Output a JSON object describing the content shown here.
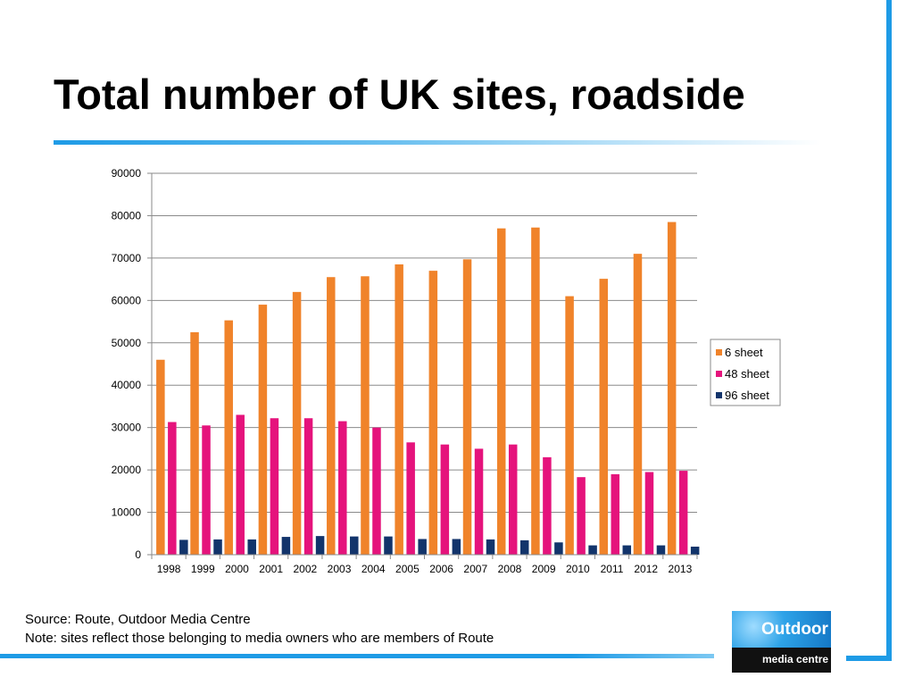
{
  "slide": {
    "title": "Total number of UK sites, roadside",
    "source_line": "Source: Route, Outdoor Media Centre",
    "note_line": "Note: sites reflect those belonging to media owners who are members of Route"
  },
  "logo": {
    "main": "Outdoor",
    "sub": "media centre"
  },
  "colors": {
    "accent": "#1e9be6",
    "series_6_sheet": "#f0832a",
    "series_48_sheet": "#e5137c",
    "series_96_sheet": "#12346b"
  },
  "chart_data": {
    "type": "bar",
    "title": "",
    "xlabel": "",
    "ylabel": "",
    "categories": [
      "1998",
      "1999",
      "2000",
      "2001",
      "2002",
      "2003",
      "2004",
      "2005",
      "2006",
      "2007",
      "2008",
      "2009",
      "2010",
      "2011",
      "2012",
      "2013"
    ],
    "series": [
      {
        "name": "6 sheet",
        "color": "#f0832a",
        "values": [
          46000,
          52500,
          55300,
          59000,
          62000,
          65500,
          65700,
          68500,
          67000,
          69700,
          77000,
          77200,
          61000,
          65100,
          71000,
          78500
        ]
      },
      {
        "name": "48 sheet",
        "color": "#e5137c",
        "values": [
          31300,
          30500,
          33000,
          32200,
          32200,
          31500,
          30000,
          26500,
          26000,
          25000,
          26000,
          23000,
          18300,
          19000,
          19500,
          19800
        ]
      },
      {
        "name": "96 sheet",
        "color": "#12346b",
        "values": [
          3500,
          3600,
          3600,
          4200,
          4400,
          4300,
          4300,
          3700,
          3700,
          3600,
          3400,
          2900,
          2200,
          2200,
          2200,
          1900
        ]
      }
    ],
    "ylim": [
      0,
      90000
    ],
    "yticks": [
      0,
      10000,
      20000,
      30000,
      40000,
      50000,
      60000,
      70000,
      80000,
      90000
    ],
    "grid": true,
    "legend_position": "right"
  }
}
